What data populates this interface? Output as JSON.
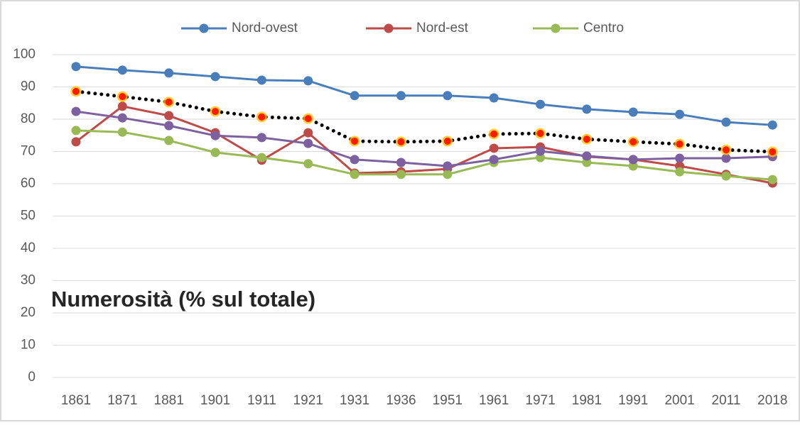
{
  "chart_data": {
    "type": "line",
    "annotation": "Numerosità (% sul totale)",
    "categories": [
      "1861",
      "1871",
      "1881",
      "1901",
      "1911",
      "1921",
      "1931",
      "1936",
      "1951",
      "1961",
      "1971",
      "1981",
      "1991",
      "2001",
      "2011",
      "2018"
    ],
    "series": [
      {
        "name": "Nord-ovest",
        "color": "#4a7ebb",
        "values": [
          96.3,
          95.2,
          94.3,
          93.2,
          92.1,
          91.9,
          87.3,
          87.3,
          87.3,
          86.6,
          84.6,
          83.1,
          82.2,
          81.5,
          79.1,
          78.2
        ]
      },
      {
        "name": "Nord-est",
        "color": "#be4b48",
        "values": [
          73.0,
          84.0,
          81.1,
          75.8,
          67.3,
          75.8,
          63.3,
          63.7,
          64.6,
          71.0,
          71.4,
          68.4,
          67.5,
          65.5,
          62.9,
          60.2
        ]
      },
      {
        "name": "Centro",
        "color": "#98b954",
        "values": [
          76.5,
          76.0,
          73.4,
          69.7,
          68.1,
          66.2,
          62.9,
          62.9,
          62.9,
          66.6,
          68.1,
          66.6,
          65.5,
          63.7,
          62.4,
          61.3
        ]
      },
      {
        "color": "#7d60a0",
        "values": [
          82.4,
          80.4,
          78.0,
          74.9,
          74.3,
          72.5,
          67.5,
          66.6,
          65.5,
          67.5,
          70.1,
          68.6,
          67.5,
          67.9,
          67.9,
          68.4
        ]
      },
      {
        "color": "#000000",
        "line_style": "dotted",
        "marker_color": "#ff1a00",
        "values": [
          88.6,
          87.0,
          85.3,
          82.4,
          80.7,
          80.2,
          73.2,
          73.0,
          73.2,
          75.4,
          75.6,
          73.8,
          73.0,
          72.3,
          70.5,
          69.9
        ]
      }
    ],
    "ylim": [
      0,
      100
    ],
    "yticks": [
      0,
      10,
      20,
      30,
      40,
      50,
      60,
      70,
      80,
      90,
      100
    ],
    "grid": true,
    "legend": "top"
  }
}
